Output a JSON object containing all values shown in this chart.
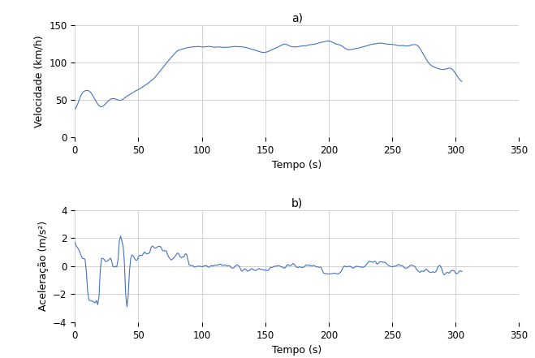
{
  "title_a": "a)",
  "title_b": "b)",
  "xlabel": "Tempo (s)",
  "ylabel_vel": "Velocidade (km/h)",
  "ylabel_acc": "Aceleração (m/s²)",
  "xlim": [
    0,
    350
  ],
  "ylim_vel": [
    0,
    150
  ],
  "ylim_acc": [
    -4,
    4
  ],
  "xticks": [
    0,
    50,
    100,
    150,
    200,
    250,
    300,
    350
  ],
  "yticks_vel": [
    0,
    50,
    100,
    150
  ],
  "yticks_acc": [
    -4,
    -2,
    0,
    2,
    4
  ],
  "line_color": "#4472C4",
  "line_width": 0.8,
  "bg_color": "#ffffff",
  "grid_color": "#d3d3d3"
}
